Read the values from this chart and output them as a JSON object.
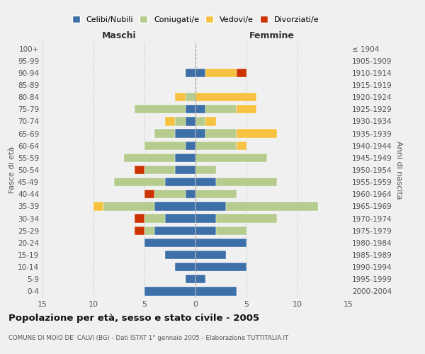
{
  "age_groups": [
    "0-4",
    "5-9",
    "10-14",
    "15-19",
    "20-24",
    "25-29",
    "30-34",
    "35-39",
    "40-44",
    "45-49",
    "50-54",
    "55-59",
    "60-64",
    "65-69",
    "70-74",
    "75-79",
    "80-84",
    "85-89",
    "90-94",
    "95-99",
    "100+"
  ],
  "birth_years": [
    "2000-2004",
    "1995-1999",
    "1990-1994",
    "1985-1989",
    "1980-1984",
    "1975-1979",
    "1970-1974",
    "1965-1969",
    "1960-1964",
    "1955-1959",
    "1950-1954",
    "1945-1949",
    "1940-1944",
    "1935-1939",
    "1930-1934",
    "1925-1929",
    "1920-1924",
    "1915-1919",
    "1910-1914",
    "1905-1909",
    "≤ 1904"
  ],
  "maschi": {
    "celibi": [
      5,
      1,
      2,
      3,
      5,
      4,
      3,
      4,
      1,
      3,
      2,
      2,
      1,
      2,
      1,
      1,
      0,
      0,
      1,
      0,
      0
    ],
    "coniugati": [
      0,
      0,
      0,
      0,
      0,
      1,
      2,
      5,
      3,
      5,
      3,
      5,
      4,
      2,
      1,
      5,
      1,
      0,
      0,
      0,
      0
    ],
    "vedovi": [
      0,
      0,
      0,
      0,
      0,
      0,
      0,
      1,
      0,
      0,
      0,
      0,
      0,
      0,
      1,
      0,
      1,
      0,
      0,
      0,
      0
    ],
    "divorziati": [
      0,
      0,
      0,
      0,
      0,
      1,
      1,
      0,
      1,
      0,
      1,
      0,
      0,
      0,
      0,
      0,
      0,
      0,
      0,
      0,
      0
    ]
  },
  "femmine": {
    "nubili": [
      4,
      1,
      5,
      3,
      5,
      2,
      2,
      3,
      0,
      2,
      0,
      0,
      0,
      1,
      0,
      1,
      0,
      0,
      1,
      0,
      0
    ],
    "coniugate": [
      0,
      0,
      0,
      0,
      0,
      3,
      6,
      9,
      4,
      6,
      2,
      7,
      4,
      3,
      1,
      3,
      0,
      0,
      0,
      0,
      0
    ],
    "vedove": [
      0,
      0,
      0,
      0,
      0,
      0,
      0,
      0,
      0,
      0,
      0,
      0,
      1,
      4,
      1,
      2,
      6,
      0,
      3,
      0,
      0
    ],
    "divorziate": [
      0,
      0,
      0,
      0,
      0,
      0,
      0,
      0,
      0,
      0,
      0,
      0,
      0,
      0,
      0,
      0,
      0,
      0,
      1,
      0,
      0
    ]
  },
  "colors": {
    "celibi_nubili": "#3d6fa8",
    "coniugati": "#b5cc8e",
    "vedovi": "#f5c242",
    "divorziati": "#cc3300"
  },
  "xlim": 15,
  "title": "Popolazione per età, sesso e stato civile - 2005",
  "subtitle": "COMUNE DI MOIO DE' CALVI (BG) - Dati ISTAT 1° gennaio 2005 - Elaborazione TUTTITALIA.IT",
  "xlabel_left": "Maschi",
  "xlabel_right": "Femmine",
  "ylabel_left": "Fasce di età",
  "ylabel_right": "Anni di nascita",
  "legend_labels": [
    "Celibi/Nubili",
    "Coniugati/e",
    "Vedovi/e",
    "Divorziati/e"
  ],
  "bg_color": "#f0f0f0",
  "grid_color": "#cccccc"
}
